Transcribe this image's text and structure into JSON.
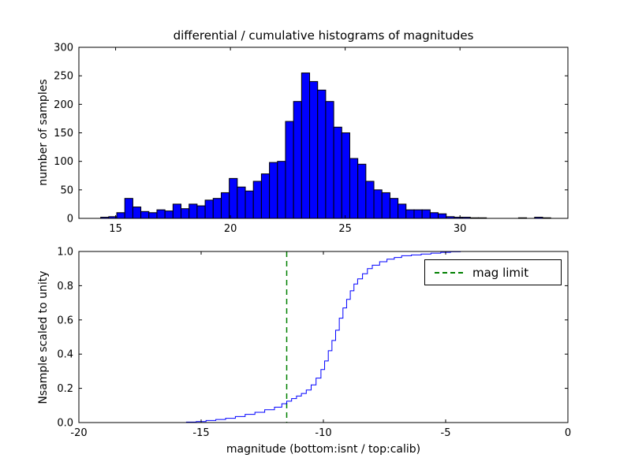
{
  "figure": {
    "background": "#ffffff",
    "frame_color": "#000000"
  },
  "chart_data": [
    {
      "type": "bar",
      "subplot": "top",
      "title": "differential / cumulative histograms of magnitudes",
      "ylabel": "number of samples",
      "xlim": [
        13.4,
        34.7
      ],
      "ylim": [
        0,
        300
      ],
      "xticks": [
        15,
        20,
        25,
        30
      ],
      "xticklabels": [
        "15",
        "20",
        "25",
        "30"
      ],
      "yticks": [
        0,
        50,
        100,
        150,
        200,
        250,
        300
      ],
      "yticklabels": [
        "0",
        "50",
        "100",
        "150",
        "200",
        "250",
        "300"
      ],
      "bin_start": 14.0,
      "bin_width": 0.35,
      "values": [
        0,
        2,
        3,
        10,
        35,
        20,
        12,
        10,
        15,
        13,
        25,
        17,
        25,
        22,
        32,
        35,
        45,
        70,
        55,
        48,
        65,
        78,
        98,
        100,
        170,
        205,
        255,
        240,
        225,
        205,
        160,
        150,
        105,
        95,
        65,
        50,
        45,
        35,
        25,
        15,
        15,
        15,
        10,
        8,
        3,
        2,
        2,
        1,
        1,
        0,
        0,
        0,
        0,
        1,
        0,
        2,
        1
      ],
      "bar_color": "#0000ff",
      "bar_edge_color": "#000000",
      "grid": false
    },
    {
      "type": "line",
      "subplot": "bottom",
      "ylabel": "Nsample scaled to unity",
      "xlabel": "magnitude (bottom:isnt / top:calib)",
      "xlim": [
        -20,
        0
      ],
      "ylim": [
        0.0,
        1.0
      ],
      "xticks": [
        -20,
        -15,
        -10,
        -5,
        0
      ],
      "xticklabels": [
        "-20",
        "-15",
        "-10",
        "-5",
        "0"
      ],
      "yticks": [
        0.0,
        0.2,
        0.4,
        0.6,
        0.8,
        1.0
      ],
      "yticklabels": [
        "0.0",
        "0.2",
        "0.4",
        "0.6",
        "0.8",
        "1.0"
      ],
      "line_color": "#0000ff",
      "step_points": [
        [
          -16.0,
          0
        ],
        [
          -15.6,
          0.003
        ],
        [
          -15.2,
          0.006
        ],
        [
          -14.8,
          0.012
        ],
        [
          -14.4,
          0.018
        ],
        [
          -14.0,
          0.025
        ],
        [
          -13.6,
          0.035
        ],
        [
          -13.2,
          0.048
        ],
        [
          -12.8,
          0.06
        ],
        [
          -12.4,
          0.075
        ],
        [
          -12.0,
          0.09
        ],
        [
          -11.7,
          0.11
        ],
        [
          -11.5,
          0.125
        ],
        [
          -11.3,
          0.14
        ],
        [
          -11.1,
          0.155
        ],
        [
          -10.9,
          0.17
        ],
        [
          -10.7,
          0.19
        ],
        [
          -10.5,
          0.22
        ],
        [
          -10.3,
          0.26
        ],
        [
          -10.1,
          0.31
        ],
        [
          -9.95,
          0.36
        ],
        [
          -9.8,
          0.42
        ],
        [
          -9.65,
          0.48
        ],
        [
          -9.5,
          0.54
        ],
        [
          -9.35,
          0.61
        ],
        [
          -9.2,
          0.67
        ],
        [
          -9.05,
          0.72
        ],
        [
          -8.9,
          0.77
        ],
        [
          -8.75,
          0.81
        ],
        [
          -8.6,
          0.84
        ],
        [
          -8.4,
          0.87
        ],
        [
          -8.2,
          0.9
        ],
        [
          -8.0,
          0.92
        ],
        [
          -7.7,
          0.94
        ],
        [
          -7.4,
          0.955
        ],
        [
          -7.1,
          0.965
        ],
        [
          -6.8,
          0.975
        ],
        [
          -6.4,
          0.98
        ],
        [
          -6.0,
          0.985
        ],
        [
          -5.6,
          0.99
        ],
        [
          -5.2,
          0.995
        ],
        [
          -4.8,
          0.998
        ],
        [
          -4.4,
          1.0
        ],
        [
          0.0,
          1.0
        ]
      ],
      "vline": {
        "x": -11.5,
        "color": "#008000",
        "style": "dashed"
      },
      "legend": {
        "position": "upper right",
        "entries": [
          {
            "label": "mag limit",
            "color": "#008000",
            "style": "dashed"
          }
        ]
      },
      "grid": false
    }
  ]
}
